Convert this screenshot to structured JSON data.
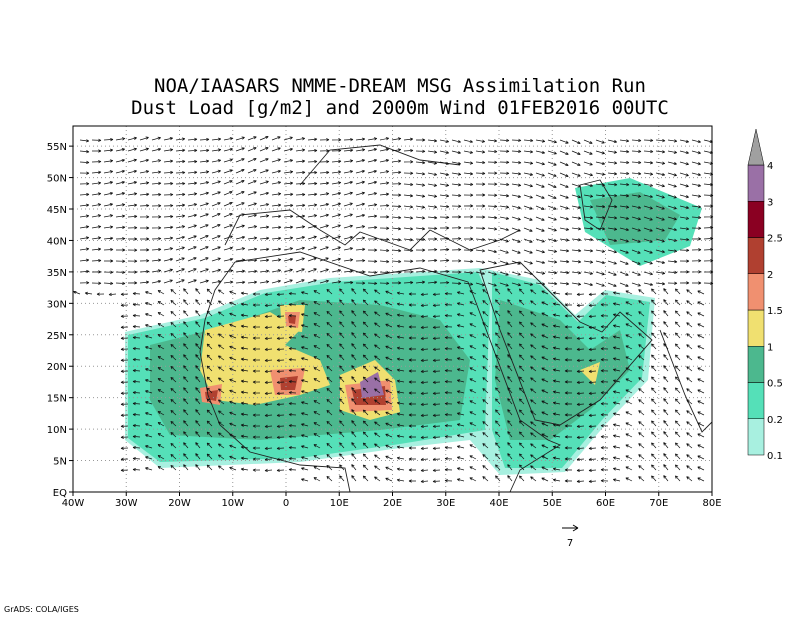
{
  "map": {
    "title": [
      "NOA/IAASARS NMME-DREAM MSG Assimilation Run",
      "Dust Load [g/m2] and 2000m Wind 01FEB2016 00UTC"
    ],
    "lonlim": [
      -40,
      80
    ],
    "latlim": [
      0,
      58.2
    ],
    "xticks": [
      {
        "value": -40,
        "label": "40W"
      },
      {
        "value": -30,
        "label": "30W"
      },
      {
        "value": -20,
        "label": "20W"
      },
      {
        "value": -10,
        "label": "10W"
      },
      0,
      {
        "value": 10,
        "label": "10E"
      },
      {
        "value": 20,
        "label": "20E"
      },
      {
        "value": 30,
        "label": "30E"
      },
      {
        "value": 40,
        "label": "40E"
      },
      {
        "value": 50,
        "label": "50E"
      },
      {
        "value": 60,
        "label": "60E"
      },
      {
        "value": 70,
        "label": "70E"
      },
      {
        "value": 80,
        "label": "80E"
      }
    ],
    "yticks": [
      {
        "value": 0,
        "label": "EQ"
      },
      {
        "value": 5,
        "label": "5N"
      },
      {
        "value": 10,
        "label": "10N"
      },
      {
        "value": 15,
        "label": "15N"
      },
      {
        "value": 20,
        "label": "20N"
      },
      {
        "value": 25,
        "label": "25N"
      },
      {
        "value": 30,
        "label": "30N"
      },
      {
        "value": 35,
        "label": "35N"
      },
      {
        "value": 40,
        "label": "40N"
      },
      {
        "value": 45,
        "label": "45N"
      },
      {
        "value": 50,
        "label": "50N"
      },
      {
        "value": 55,
        "label": "55N"
      }
    ],
    "colorbar": {
      "levels": [
        0.1,
        0.2,
        0.5,
        1,
        1.5,
        2,
        2.5,
        3,
        4
      ],
      "colors": [
        "#a8f0e0",
        "#55e0b8",
        "#4cb88e",
        "#f0e070",
        "#f09070",
        "#b04030",
        "#8a0022",
        "#9a70a6"
      ],
      "over_color": "#a0a0a0"
    },
    "wind_scale": 7,
    "footer": "GrADS: COLA/IGES"
  }
}
